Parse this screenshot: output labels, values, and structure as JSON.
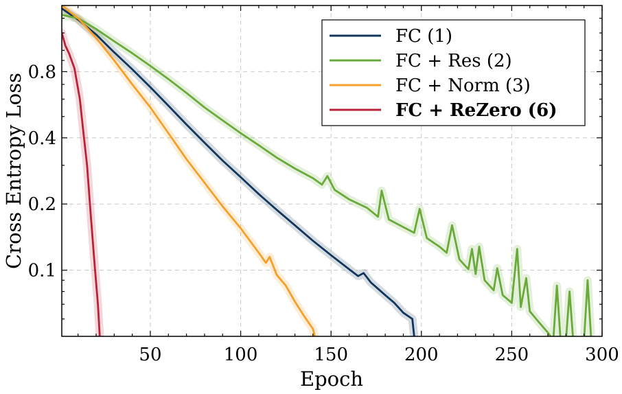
{
  "chart_data": {
    "type": "line",
    "xlabel": "Epoch",
    "ylabel": "Cross Entropy Loss",
    "xlim": [
      1,
      300
    ],
    "ylim_log": [
      0.05,
      1.6
    ],
    "yscale": "log",
    "grid": true,
    "legend_position": "top-right",
    "x_ticks": [
      50,
      100,
      150,
      200,
      250,
      300
    ],
    "y_ticks": [
      0.1,
      0.2,
      0.4,
      0.8
    ],
    "x_tick_labels": [
      "50",
      "100",
      "150",
      "200",
      "250",
      "300"
    ],
    "y_tick_labels": [
      "0.1",
      "0.2",
      "0.4",
      "0.8"
    ],
    "series": [
      {
        "name": "FC (1)",
        "color": "#12355b",
        "bold": false,
        "points": [
          [
            1,
            1.55
          ],
          [
            10,
            1.38
          ],
          [
            20,
            1.18
          ],
          [
            30,
            0.98
          ],
          [
            40,
            0.82
          ],
          [
            50,
            0.68
          ],
          [
            60,
            0.56
          ],
          [
            70,
            0.46
          ],
          [
            80,
            0.38
          ],
          [
            90,
            0.315
          ],
          [
            100,
            0.265
          ],
          [
            110,
            0.222
          ],
          [
            120,
            0.188
          ],
          [
            130,
            0.16
          ],
          [
            140,
            0.136
          ],
          [
            150,
            0.117
          ],
          [
            160,
            0.101
          ],
          [
            165,
            0.094
          ],
          [
            168,
            0.097
          ],
          [
            172,
            0.088
          ],
          [
            180,
            0.077
          ],
          [
            185,
            0.071
          ],
          [
            190,
            0.064
          ],
          [
            195,
            0.06
          ],
          [
            196,
            0.05
          ]
        ]
      },
      {
        "name": "FC + Res (2)",
        "color": "#6aaa3a",
        "bold": false,
        "points": [
          [
            1,
            1.45
          ],
          [
            10,
            1.4
          ],
          [
            20,
            1.25
          ],
          [
            30,
            1.1
          ],
          [
            40,
            0.97
          ],
          [
            50,
            0.85
          ],
          [
            60,
            0.74
          ],
          [
            70,
            0.64
          ],
          [
            80,
            0.55
          ],
          [
            90,
            0.48
          ],
          [
            100,
            0.42
          ],
          [
            110,
            0.37
          ],
          [
            120,
            0.325
          ],
          [
            130,
            0.29
          ],
          [
            140,
            0.262
          ],
          [
            145,
            0.245
          ],
          [
            148,
            0.268
          ],
          [
            152,
            0.232
          ],
          [
            160,
            0.21
          ],
          [
            170,
            0.192
          ],
          [
            176,
            0.175
          ],
          [
            178,
            0.23
          ],
          [
            182,
            0.17
          ],
          [
            190,
            0.157
          ],
          [
            196,
            0.148
          ],
          [
            199,
            0.19
          ],
          [
            203,
            0.14
          ],
          [
            210,
            0.128
          ],
          [
            214,
            0.12
          ],
          [
            217,
            0.16
          ],
          [
            221,
            0.112
          ],
          [
            226,
            0.101
          ],
          [
            228,
            0.125
          ],
          [
            230,
            0.096
          ],
          [
            232,
            0.128
          ],
          [
            235,
            0.09
          ],
          [
            240,
            0.081
          ],
          [
            242,
            0.102
          ],
          [
            245,
            0.077
          ],
          [
            250,
            0.071
          ],
          [
            253,
            0.125
          ],
          [
            255,
            0.068
          ],
          [
            258,
            0.092
          ],
          [
            260,
            0.065
          ],
          [
            265,
            0.058
          ],
          [
            270,
            0.052
          ],
          [
            273,
            0.048
          ],
          [
            275,
            0.085
          ],
          [
            277,
            0.048
          ],
          [
            280,
            0.048
          ],
          [
            282,
            0.08
          ],
          [
            284,
            0.048
          ],
          [
            290,
            0.048
          ],
          [
            292,
            0.09
          ],
          [
            294,
            0.048
          ]
        ]
      },
      {
        "name": "FC + Norm (3)",
        "color": "#f5a02a",
        "bold": false,
        "points": [
          [
            1,
            1.6
          ],
          [
            10,
            1.4
          ],
          [
            20,
            1.14
          ],
          [
            30,
            0.9
          ],
          [
            40,
            0.7
          ],
          [
            50,
            0.55
          ],
          [
            60,
            0.42
          ],
          [
            70,
            0.32
          ],
          [
            80,
            0.25
          ],
          [
            90,
            0.195
          ],
          [
            100,
            0.155
          ],
          [
            110,
            0.12
          ],
          [
            114,
            0.108
          ],
          [
            116,
            0.115
          ],
          [
            120,
            0.095
          ],
          [
            125,
            0.085
          ],
          [
            130,
            0.072
          ],
          [
            135,
            0.062
          ],
          [
            140,
            0.054
          ],
          [
            141,
            0.05
          ]
        ]
      },
      {
        "name": "FC + ReZero (6)",
        "color": "#b8233a",
        "bold": true,
        "points": [
          [
            1,
            1.2
          ],
          [
            3,
            1.05
          ],
          [
            5,
            0.97
          ],
          [
            8,
            0.83
          ],
          [
            11,
            0.6
          ],
          [
            13,
            0.42
          ],
          [
            15,
            0.3
          ],
          [
            17,
            0.18
          ],
          [
            19,
            0.11
          ],
          [
            21,
            0.07
          ],
          [
            22,
            0.05
          ]
        ]
      }
    ]
  }
}
